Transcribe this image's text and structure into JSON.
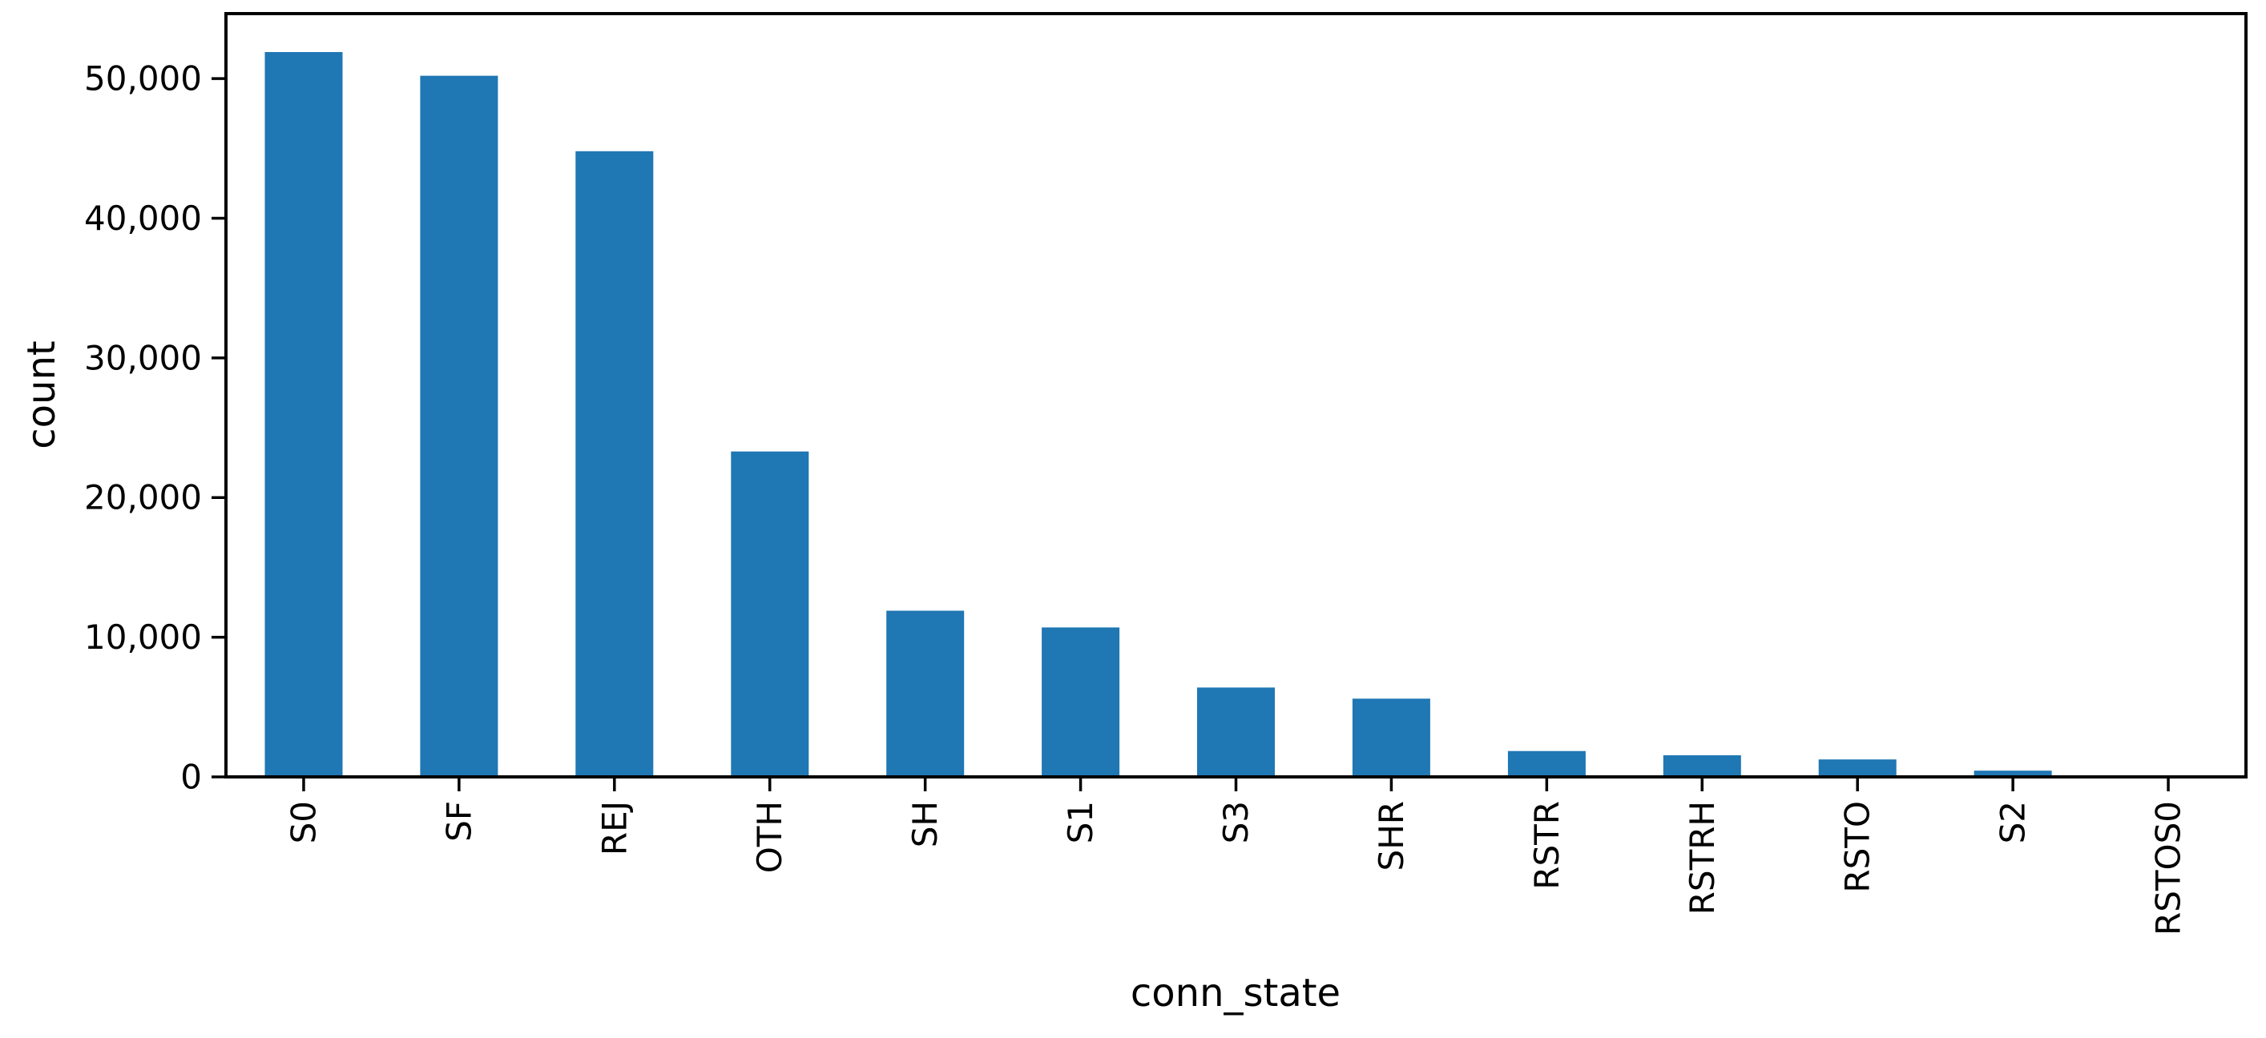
{
  "chart_data": {
    "type": "bar",
    "title": "",
    "xlabel": "conn_state",
    "ylabel": "count",
    "categories": [
      "S0",
      "SF",
      "REJ",
      "OTH",
      "SH",
      "S1",
      "S3",
      "SHR",
      "RSTR",
      "RSTRH",
      "RSTO",
      "S2",
      "RSTOS0"
    ],
    "values": [
      51900,
      50200,
      44800,
      23300,
      11900,
      10700,
      6400,
      5600,
      1850,
      1550,
      1250,
      450,
      50
    ],
    "ylim": [
      0,
      54650
    ],
    "yticks": [
      0,
      10000,
      20000,
      30000,
      40000,
      50000
    ],
    "ytick_labels": [
      "0",
      "10,000",
      "20,000",
      "30,000",
      "40,000",
      "50,000"
    ],
    "bar_color": "#1f77b4",
    "axis_color": "#000000",
    "grid": false,
    "legend": "none",
    "bar_width_fraction": 0.5,
    "xtick_rotation_deg": 90
  }
}
